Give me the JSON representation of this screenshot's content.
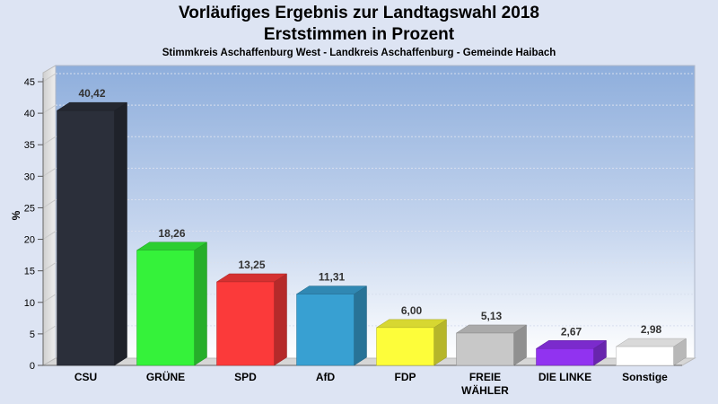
{
  "header": {
    "title_line1": "Vorläufiges Ergebnis zur Landtagswahl 2018",
    "title_line2": "Erststimmen in Prozent",
    "subtitle": "Stimmkreis Aschaffenburg West - Landkreis Aschaffenburg - Gemeinde Haibach"
  },
  "chart_data": {
    "type": "bar",
    "title": "Vorläufiges Ergebnis zur Landtagswahl 2018",
    "subtitle": "Erststimmen in Prozent",
    "ylabel": "%",
    "xlabel": "",
    "ylim": [
      0,
      45
    ],
    "yticks": [
      0,
      5,
      10,
      15,
      20,
      25,
      30,
      35,
      40,
      45
    ],
    "grid": true,
    "categories": [
      "CSU",
      "GRÜNE",
      "SPD",
      "AfD",
      "FDP",
      "FREIE WÄHLER",
      "DIE LINKE",
      "Sonstige"
    ],
    "category_lines": [
      [
        "CSU"
      ],
      [
        "GRÜNE"
      ],
      [
        "SPD"
      ],
      [
        "AfD"
      ],
      [
        "FDP"
      ],
      [
        "FREIE",
        "WÄHLER"
      ],
      [
        "DIE LINKE"
      ],
      [
        "Sonstige"
      ]
    ],
    "values": [
      40.42,
      18.26,
      13.25,
      11.31,
      6.0,
      5.13,
      2.67,
      2.98
    ],
    "value_labels": [
      "40,42",
      "18,26",
      "13,25",
      "11,31",
      "6,00",
      "5,13",
      "2,67",
      "2,98"
    ],
    "colors": [
      "#2b2f3a",
      "#35f23a",
      "#fb3a3a",
      "#38a0d2",
      "#fdfd3a",
      "#c8c8c8",
      "#9133f0",
      "#ffffff"
    ]
  }
}
